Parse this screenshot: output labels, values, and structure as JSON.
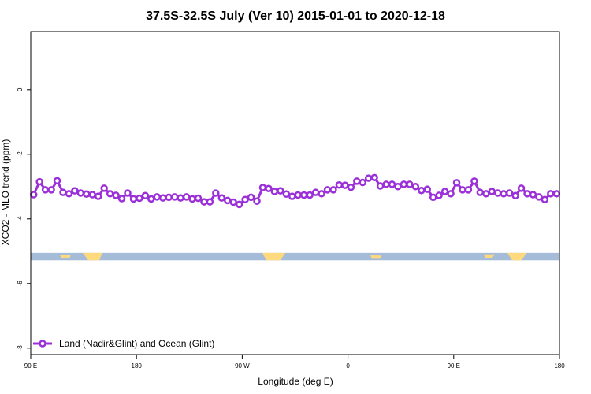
{
  "chart_data": {
    "type": "line",
    "title": "37.5S-32.5S July (Ver 10)   2015-01-01 to 2020-12-18",
    "xlabel": "Longitude (deg E)",
    "ylabel": "XCO2 - MLO trend (ppm)",
    "xlim": [
      90,
      540
    ],
    "ylim": [
      -8.2,
      1.8
    ],
    "x_ticks": [
      {
        "value": 90,
        "label": "90 E"
      },
      {
        "value": 180,
        "label": "180"
      },
      {
        "value": 270,
        "label": "90 W"
      },
      {
        "value": 360,
        "label": "0"
      },
      {
        "value": 450,
        "label": "90 E"
      },
      {
        "value": 540,
        "label": "180"
      }
    ],
    "y_ticks": [
      {
        "value": 0,
        "label": "0"
      },
      {
        "value": -2,
        "label": "-2"
      },
      {
        "value": -4,
        "label": "-4"
      },
      {
        "value": -6,
        "label": "-6"
      },
      {
        "value": -8,
        "label": "-8"
      }
    ],
    "grid": false,
    "legend_position": "bottom-left",
    "land_strip": {
      "y_top": -5.05,
      "y_bottom": -5.28,
      "ocean_color": "#a5bcd9",
      "land_color": "#ffd97e"
    },
    "series": [
      {
        "name": "Land (Nadir&Glint) and Ocean (Glint)",
        "color": "#9b30d9",
        "x": [
          92.5,
          97.5,
          102.5,
          107.5,
          112.5,
          117.5,
          122.5,
          127.5,
          132.5,
          137.5,
          142.5,
          147.5,
          152.5,
          157.5,
          162.5,
          167.5,
          172.5,
          177.5,
          182.5,
          187.5,
          192.5,
          197.5,
          202.5,
          207.5,
          212.5,
          217.5,
          222.5,
          227.5,
          232.5,
          237.5,
          242.5,
          247.5,
          252.5,
          257.5,
          262.5,
          267.5,
          272.5,
          277.5,
          282.5,
          287.5,
          292.5,
          297.5,
          302.5,
          307.5,
          312.5,
          317.5,
          322.5,
          327.5,
          332.5,
          337.5,
          342.5,
          347.5,
          352.5,
          357.5,
          362.5,
          367.5,
          372.5,
          377.5,
          382.5,
          387.5,
          392.5,
          397.5,
          402.5,
          407.5,
          412.5,
          417.5,
          422.5,
          427.5,
          432.5,
          437.5,
          442.5,
          447.5,
          452.5,
          457.5,
          462.5,
          467.5,
          472.5,
          477.5,
          482.5,
          487.5,
          492.5,
          497.5,
          502.5,
          507.5,
          512.5,
          517.5,
          522.5,
          527.5,
          532.5,
          537.5
        ],
        "y": [
          -3.25,
          -2.85,
          -3.1,
          -3.1,
          -2.82,
          -3.18,
          -3.22,
          -3.13,
          -3.2,
          -3.23,
          -3.25,
          -3.3,
          -3.05,
          -3.22,
          -3.27,
          -3.37,
          -3.2,
          -3.38,
          -3.36,
          -3.28,
          -3.38,
          -3.32,
          -3.35,
          -3.33,
          -3.32,
          -3.35,
          -3.32,
          -3.38,
          -3.36,
          -3.47,
          -3.47,
          -3.2,
          -3.35,
          -3.43,
          -3.48,
          -3.55,
          -3.4,
          -3.33,
          -3.45,
          -3.03,
          -3.06,
          -3.15,
          -3.13,
          -3.23,
          -3.3,
          -3.26,
          -3.26,
          -3.26,
          -3.18,
          -3.22,
          -3.1,
          -3.1,
          -2.95,
          -2.96,
          -3.02,
          -2.83,
          -2.87,
          -2.74,
          -2.72,
          -2.98,
          -2.93,
          -2.93,
          -3.0,
          -2.93,
          -2.93,
          -3.0,
          -3.12,
          -3.08,
          -3.33,
          -3.27,
          -3.15,
          -3.22,
          -2.88,
          -3.1,
          -3.1,
          -2.83,
          -3.18,
          -3.22,
          -3.15,
          -3.2,
          -3.22,
          -3.2,
          -3.28,
          -3.05,
          -3.22,
          -3.25,
          -3.32,
          -3.4,
          -3.22,
          -3.22
        ]
      }
    ]
  }
}
